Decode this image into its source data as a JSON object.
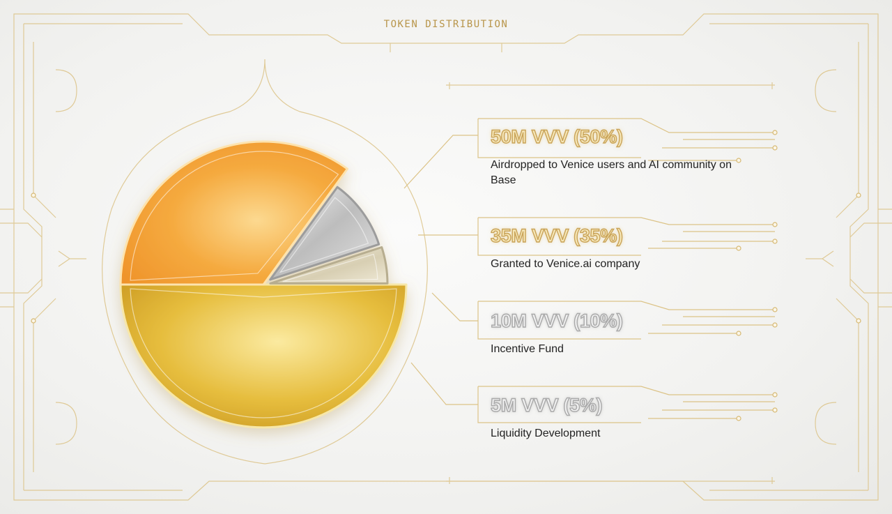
{
  "title": "TOKEN DISTRIBUTION",
  "chart_data": {
    "type": "pie",
    "title": "TOKEN DISTRIBUTION",
    "slices": [
      {
        "label": "50M VVV (50%)",
        "description": "Airdropped to Venice users and AI community on Base",
        "amount": "50M VVV",
        "value": 50,
        "color": "#e2b531"
      },
      {
        "label": "35M VVV (35%)",
        "description": "Granted to Venice.ai company",
        "amount": "35M VVV",
        "value": 35,
        "color": "#f4a53a"
      },
      {
        "label": "10M VVV (10%)",
        "description": "Incentive Fund",
        "amount": "10M VVV",
        "value": 10,
        "color": "#c6c6c6"
      },
      {
        "label": "5M VVV (5%)",
        "description": "Liquidity Development",
        "amount": "5M VVV",
        "value": 5,
        "color": "#d6cdb2"
      }
    ],
    "legend_position": "right"
  },
  "colors": {
    "gold": "#e2b531",
    "orange": "#f4a53a",
    "silver": "#c6c6c6",
    "pale_gold": "#d6cdb2",
    "ornament": "#d9bf7e"
  }
}
